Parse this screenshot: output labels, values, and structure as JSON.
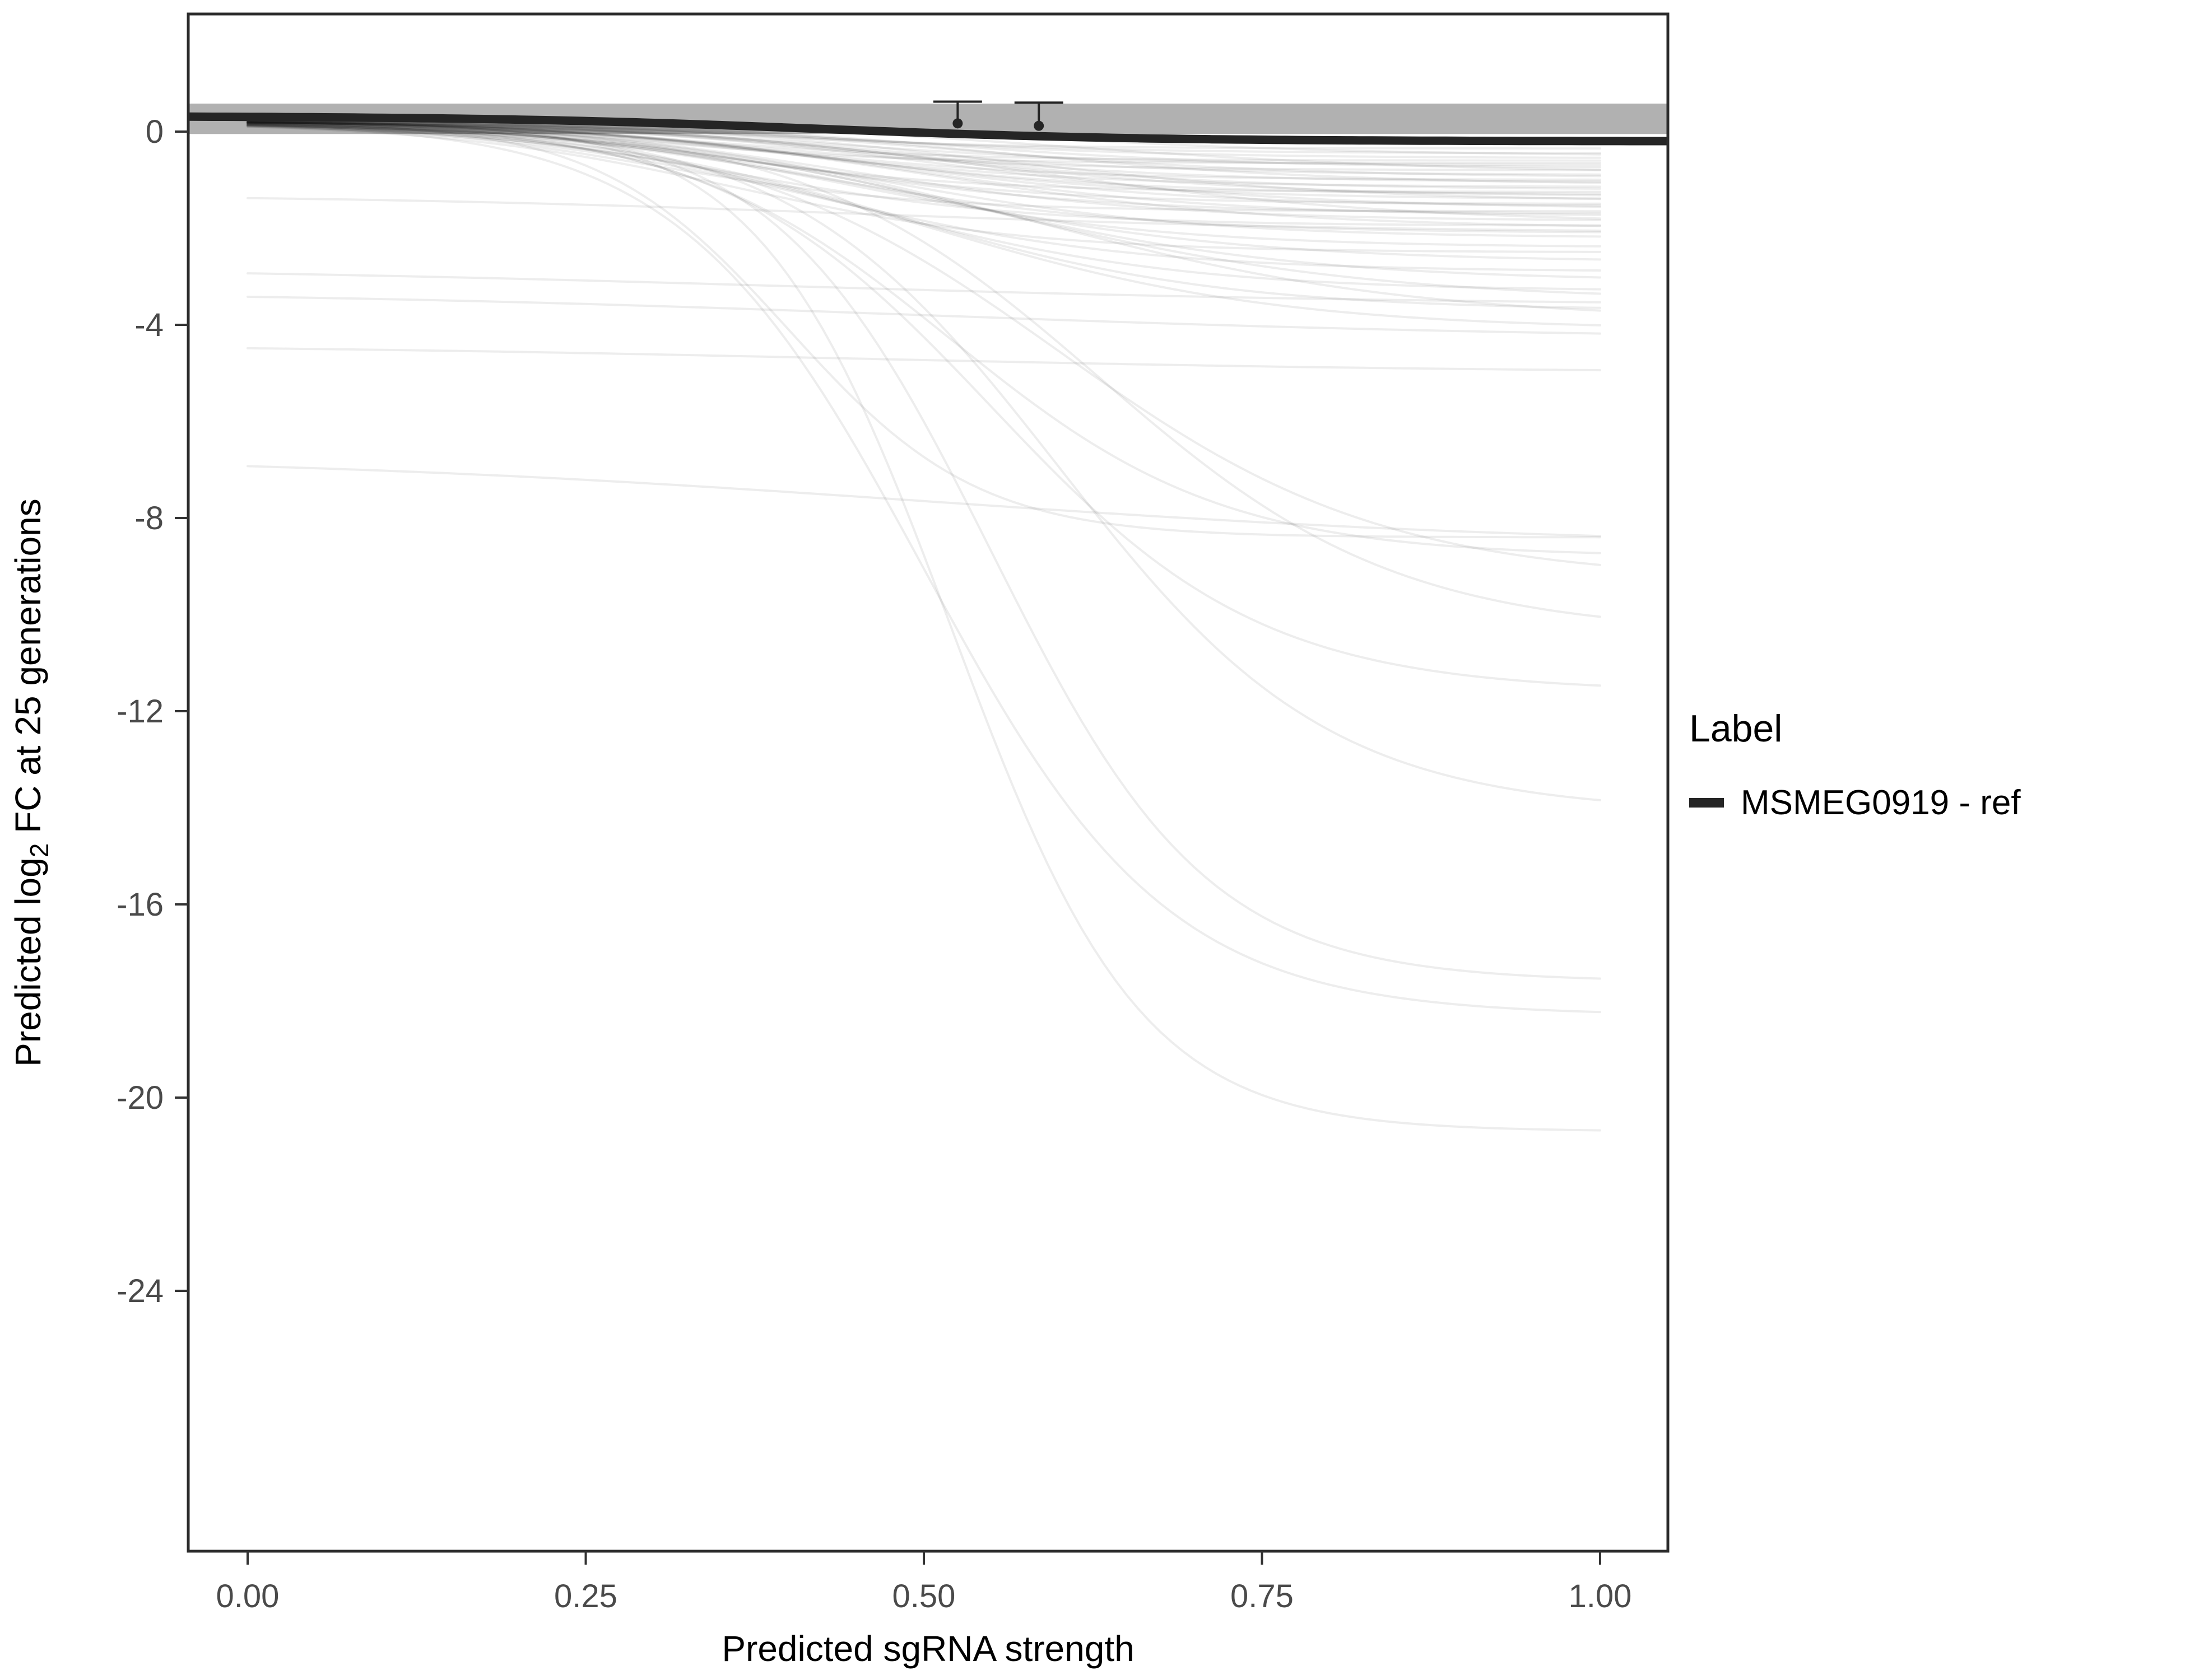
{
  "chart_data": {
    "type": "line",
    "title": "",
    "xlabel": "Predicted sgRNA strength",
    "ylabel_parts": [
      "Predicted  log",
      "2",
      " FC at 25 generations"
    ],
    "xlim": [
      0,
      1
    ],
    "ylim": [
      -29.4,
      2.4
    ],
    "x_tick_values": [
      0,
      0.25,
      0.5,
      0.75,
      1
    ],
    "x_tick_labels": [
      "0.00",
      "0.25",
      "0.50",
      "0.75",
      "1.00"
    ],
    "y_tick_values": [
      0,
      -4,
      -8,
      -12,
      -16,
      -20,
      -24
    ],
    "y_tick_labels": [
      "0",
      "-4",
      "-8",
      "-12",
      "-16",
      "-20",
      "-24"
    ],
    "grid": false,
    "legend": {
      "position": "right",
      "title": "Label",
      "items": [
        {
          "label": "MSMEG0919 - ref",
          "color": "#252525"
        }
      ]
    },
    "reference_series": {
      "name": "MSMEG0919 - ref",
      "color": "#252525",
      "linewidth": 15,
      "y_start": 0.32,
      "y_end": -0.2,
      "x_mid": 0.42,
      "width": 0.12,
      "x_range": [
        -0.044,
        1.05
      ]
    },
    "ribbon": {
      "ymin": -0.05,
      "ymax": 0.58,
      "color": "#a3a3a3",
      "opacity": 0.85,
      "x_range": [
        -0.044,
        1.05
      ]
    },
    "error_bars": [
      {
        "x": 0.525,
        "y": 0.17,
        "ymax": 0.62
      },
      {
        "x": 0.585,
        "y": 0.12,
        "ymax": 0.6
      }
    ],
    "error_bar_style": {
      "color": "#252525",
      "cap_halfwidth_x": 0.018,
      "point_radius": 9,
      "stroke": 4
    },
    "background_style": {
      "color": "#000000",
      "opacity": 0.07,
      "width": 4
    },
    "background_curves": [
      [
        0.25,
        -0.35,
        0.35,
        0.1
      ],
      [
        0.25,
        -0.45,
        0.4,
        0.12
      ],
      [
        0.22,
        -0.55,
        0.45,
        0.12
      ],
      [
        0.25,
        -0.6,
        0.32,
        0.1
      ],
      [
        0.22,
        -0.7,
        0.42,
        0.12
      ],
      [
        0.25,
        -0.75,
        0.5,
        0.12
      ],
      [
        0.22,
        -0.8,
        0.36,
        0.11
      ],
      [
        0.25,
        -0.9,
        0.44,
        0.12
      ],
      [
        0.22,
        -0.95,
        0.52,
        0.13
      ],
      [
        0.25,
        -1.0,
        0.38,
        0.11
      ],
      [
        0.22,
        -1.05,
        0.46,
        0.12
      ],
      [
        0.25,
        -1.1,
        0.55,
        0.13
      ],
      [
        0.22,
        -1.15,
        0.4,
        0.12
      ],
      [
        0.25,
        -1.2,
        0.48,
        0.12
      ],
      [
        0.22,
        -1.25,
        0.34,
        0.1
      ],
      [
        0.25,
        -1.3,
        0.42,
        0.12
      ],
      [
        0.22,
        -1.35,
        0.5,
        0.13
      ],
      [
        0.25,
        -1.4,
        0.44,
        0.12
      ],
      [
        0.22,
        -1.5,
        0.38,
        0.11
      ],
      [
        0.25,
        -1.55,
        0.46,
        0.12
      ],
      [
        0.22,
        -1.6,
        0.52,
        0.13
      ],
      [
        0.25,
        -1.7,
        0.4,
        0.12
      ],
      [
        0.22,
        -1.75,
        0.48,
        0.12
      ],
      [
        0.25,
        -1.85,
        0.44,
        0.12
      ],
      [
        0.22,
        -1.95,
        0.36,
        0.11
      ],
      [
        0.25,
        -2.0,
        0.5,
        0.13
      ],
      [
        0.22,
        -2.1,
        0.42,
        0.12
      ],
      [
        0.25,
        -2.2,
        0.46,
        0.12
      ],
      [
        0.25,
        -0.5,
        0.58,
        0.13
      ],
      [
        0.22,
        -0.65,
        0.3,
        0.09
      ],
      [
        0.25,
        -0.85,
        0.6,
        0.14
      ],
      [
        0.22,
        -1.45,
        0.56,
        0.13
      ],
      [
        0.25,
        -1.65,
        0.3,
        0.1
      ],
      [
        0.22,
        -1.9,
        0.58,
        0.14
      ],
      [
        0.25,
        -2.4,
        0.44,
        0.12
      ],
      [
        0.2,
        -2.5,
        0.36,
        0.11
      ],
      [
        0.2,
        -2.7,
        0.48,
        0.13
      ],
      [
        0.2,
        -2.9,
        0.42,
        0.12
      ],
      [
        0.2,
        -3.1,
        0.52,
        0.13
      ],
      [
        0.2,
        -3.3,
        0.45,
        0.12
      ],
      [
        0.2,
        -3.5,
        0.55,
        0.14
      ],
      [
        0.2,
        -3.7,
        0.48,
        0.12
      ],
      [
        0.2,
        -3.9,
        0.58,
        0.14
      ],
      [
        0.2,
        -4.1,
        0.5,
        0.13
      ],
      [
        0.2,
        -8.4,
        0.4,
        0.07
      ],
      [
        0.2,
        -8.8,
        0.52,
        0.1
      ],
      [
        0.2,
        -9.3,
        0.6,
        0.12
      ],
      [
        0.2,
        -10.4,
        0.63,
        0.11
      ],
      [
        0.2,
        -11.6,
        0.55,
        0.1
      ],
      [
        0.2,
        -14.1,
        0.6,
        0.1
      ],
      [
        0.2,
        -17.6,
        0.55,
        0.08
      ],
      [
        0.2,
        -18.3,
        0.5,
        0.09
      ],
      [
        0.2,
        -20.7,
        0.52,
        0.07
      ],
      [
        -1.3,
        -2.1,
        0.45,
        0.2
      ],
      [
        -2.8,
        -3.6,
        0.4,
        0.25
      ],
      [
        -3.3,
        -4.3,
        0.5,
        0.25
      ],
      [
        -4.4,
        -5.0,
        0.45,
        0.25
      ],
      [
        -6.7,
        -8.6,
        0.5,
        0.25
      ]
    ],
    "panel": {
      "border_color": "#2b2b2b",
      "border_width": 5
    },
    "text_colors": {
      "tick": "#4a4a4a",
      "axis_title": "#000000"
    }
  }
}
